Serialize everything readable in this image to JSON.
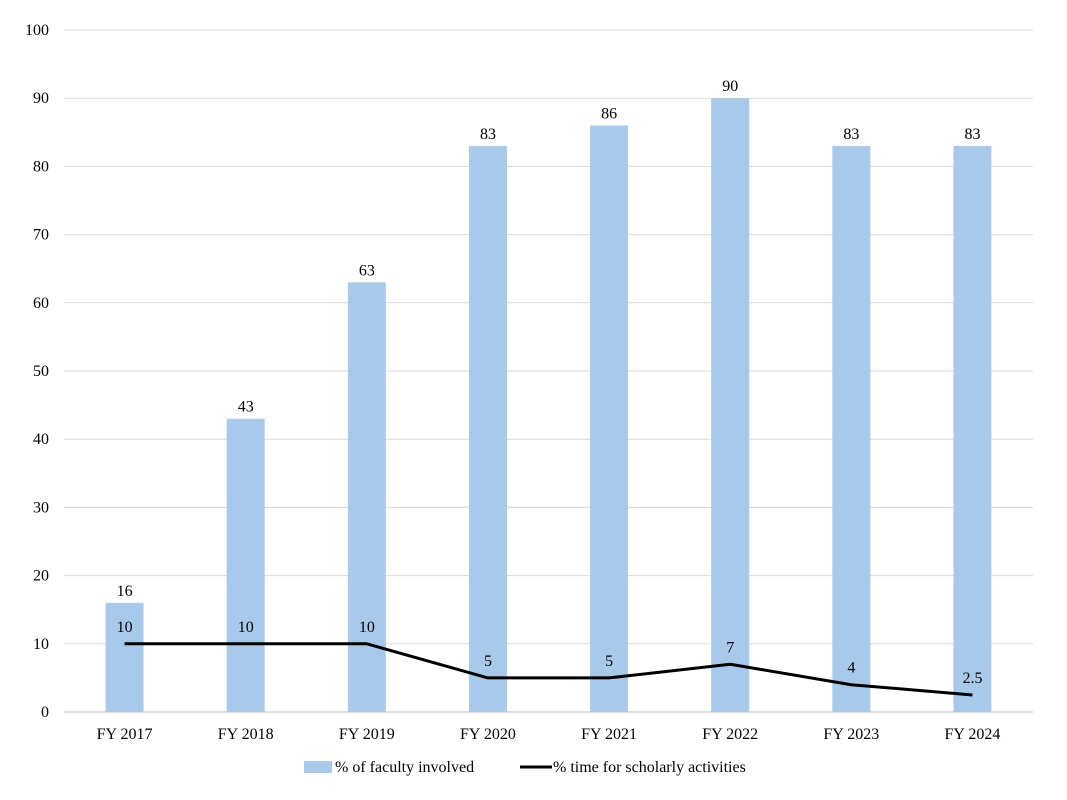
{
  "chart_data": {
    "type": "bar",
    "categories": [
      "FY 2017",
      "FY 2018",
      "FY 2019",
      "FY 2020",
      "FY 2021",
      "FY 2022",
      "FY 2023",
      "FY 2024"
    ],
    "series": [
      {
        "name": "% of faculty involved",
        "type": "bar",
        "color": "#a9c9ea",
        "values": [
          16,
          43,
          63,
          83,
          86,
          90,
          83,
          83
        ],
        "labels": [
          "16",
          "43",
          "63",
          "83",
          "86",
          "90",
          "83",
          "83"
        ]
      },
      {
        "name": "% time for scholarly activities",
        "type": "line",
        "color": "#000000",
        "values": [
          10,
          10,
          10,
          5,
          5,
          7,
          4,
          2.5
        ],
        "labels": [
          "10",
          "10",
          "10",
          "5",
          "5",
          "7",
          "4",
          "2.5"
        ]
      }
    ],
    "y_ticks": [
      "0",
      "10",
      "20",
      "30",
      "40",
      "50",
      "60",
      "70",
      "80",
      "90",
      "100"
    ],
    "ylim": [
      0,
      100
    ],
    "grid": true,
    "legend_position": "bottom"
  }
}
